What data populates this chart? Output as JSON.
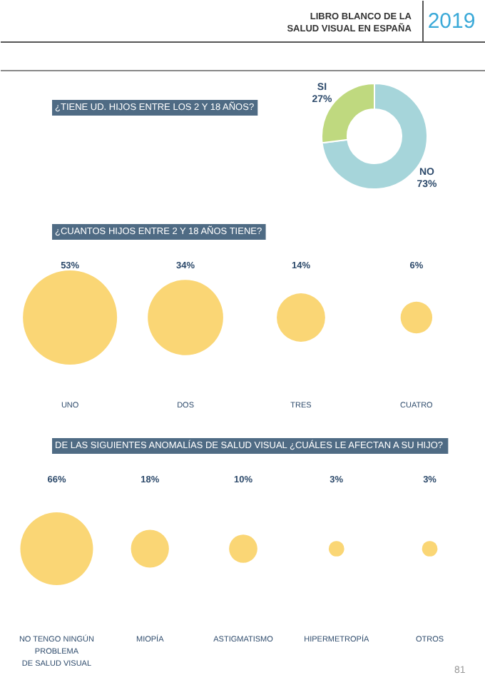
{
  "chart_data": [
    {
      "type": "donut",
      "title": "¿TIENE UD. HIJOS ENTRE LOS 2 Y 18 AÑOS?",
      "annotations": [
        "LIBRO BLANCO DE LA\nSALUD VISUAL EN ESPAÑA",
        "2019"
      ],
      "categories": [
        "NO",
        "SI"
      ],
      "values": [
        73,
        27
      ],
      "value_labels": [
        "73%",
        "27%"
      ],
      "colors": [
        "#a6d5da",
        "#bfd97f"
      ]
    },
    {
      "type": "other",
      "title": "¿CUANTOS HIJOS ENTRE 2 Y 18 AÑOS TIENE?",
      "categories": [
        "UNO",
        "DOS",
        "TRES",
        "CUATRO"
      ],
      "values": [
        53,
        34,
        14,
        6
      ],
      "value_labels": [
        "53%",
        "34%",
        "14%",
        "6%"
      ],
      "color": "#fad675"
    },
    {
      "type": "other",
      "title": "DE LAS SIGUIENTES ANOMALÍAS DE SALUD VISUAL ¿CUÁLES LE AFECTAN A SU HIJO?",
      "annotations": [
        "81"
      ],
      "categories": [
        "NO TENGO NINGÚN\nPROBLEMA\nDE SALUD VISUAL",
        "MIOPÍA",
        "ASTIGMATISMO",
        "HIPERMETROPÍA",
        "OTROS"
      ],
      "values": [
        66,
        18,
        10,
        3,
        3
      ],
      "value_labels": [
        "66%",
        "18%",
        "10%",
        "3%",
        "3%"
      ],
      "color": "#fad675"
    }
  ]
}
